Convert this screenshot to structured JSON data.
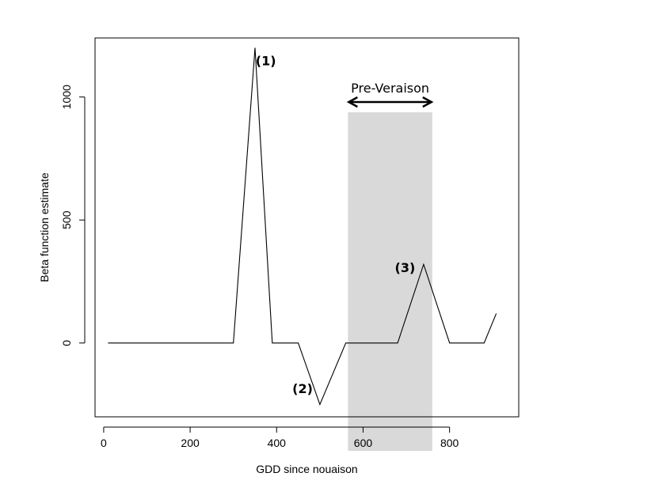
{
  "chart_data": {
    "type": "line",
    "title": "",
    "xlabel": "GDD since nouaison",
    "ylabel": "Beta function estimate",
    "xlim": [
      -20,
      960
    ],
    "ylim": [
      -300,
      1240
    ],
    "x_ticks": [
      0,
      200,
      400,
      600,
      800
    ],
    "y_ticks": [
      0,
      500,
      1000
    ],
    "grid": false,
    "series": [
      {
        "x": [
          10,
          300,
          350,
          390,
          450,
          500,
          560,
          680,
          740,
          800,
          880,
          908
        ],
        "y": [
          0,
          0,
          1200,
          0,
          0,
          -250,
          0,
          0,
          320,
          0,
          0,
          120
        ]
      }
    ],
    "shaded_region": {
      "x_start": 565,
      "x_end": 760,
      "label": "Pre-Veraison"
    },
    "annotations": [
      {
        "text": "(1)",
        "x": 375,
        "y": 1148
      },
      {
        "text": "(2)",
        "x": 460,
        "y": -185
      },
      {
        "text": "(3)",
        "x": 697,
        "y": 308
      }
    ]
  }
}
